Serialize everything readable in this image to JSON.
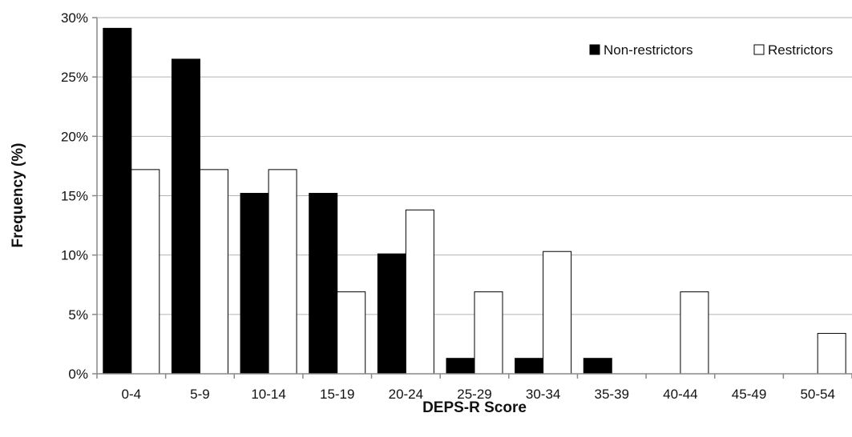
{
  "chart_data": {
    "type": "bar",
    "title": "",
    "xlabel": "DEPS-R Score",
    "ylabel": "Frequency (%)",
    "categories": [
      "0-4",
      "5-9",
      "10-14",
      "15-19",
      "20-24",
      "25-29",
      "30-34",
      "35-39",
      "40-44",
      "45-49",
      "50-54"
    ],
    "series": [
      {
        "name": "Non-restrictors",
        "color": "#000000",
        "values": [
          29.1,
          26.5,
          15.2,
          15.2,
          10.1,
          1.3,
          1.3,
          1.3,
          0,
          0,
          0
        ]
      },
      {
        "name": "Restrictors",
        "color": "#ffffff",
        "values": [
          17.2,
          17.2,
          17.2,
          6.9,
          13.8,
          6.9,
          10.3,
          0,
          6.9,
          0,
          3.4
        ]
      }
    ],
    "ylim": [
      0,
      30
    ],
    "yticks": [
      0,
      5,
      10,
      15,
      20,
      25,
      30
    ],
    "ytick_labels": [
      "0%",
      "5%",
      "10%",
      "15%",
      "20%",
      "25%",
      "30%"
    ],
    "grid": true,
    "legend_position": "top-right"
  }
}
